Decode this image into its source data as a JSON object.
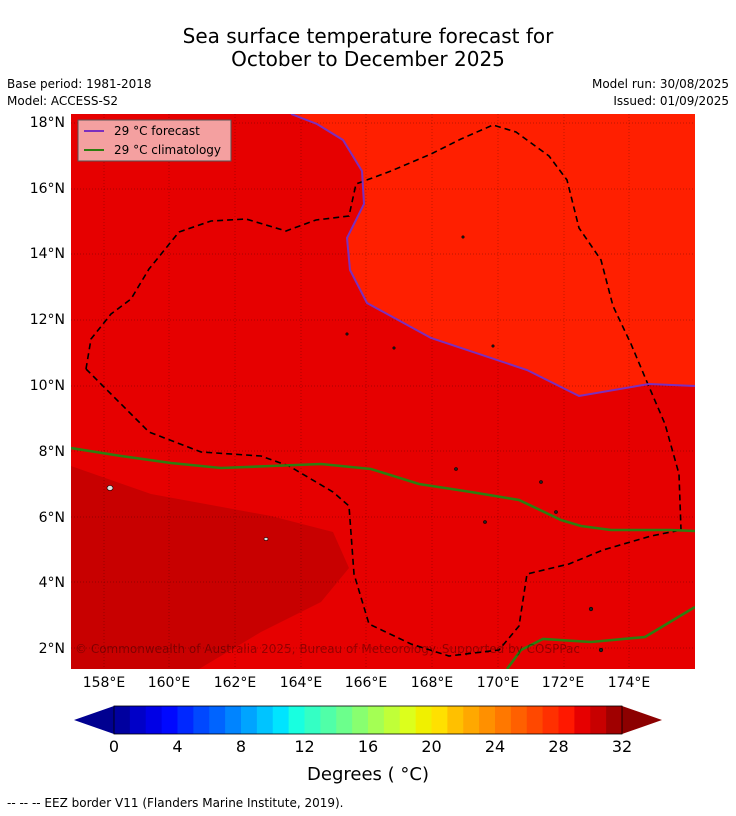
{
  "title": {
    "line1": "Sea surface temperature forecast for",
    "line2": "October to December 2025"
  },
  "meta": {
    "base_period": "Base period: 1981-2018",
    "model": "Model: ACCESS-S2",
    "model_run": "Model run: 30/08/2025",
    "issued": "Issued: 01/09/2025"
  },
  "legend": {
    "forecast_label": "29 °C  forecast",
    "climatology_label": "29 °C  climatology",
    "forecast_color": "#7b2fbe",
    "climatology_color": "#2e7d10"
  },
  "map": {
    "lon_range": [
      157.0,
      176.0
    ],
    "lat_range": [
      1.4,
      18.3
    ],
    "lon_ticks": [
      "158°E",
      "160°E",
      "162°E",
      "164°E",
      "166°E",
      "168°E",
      "170°E",
      "172°E",
      "174°E"
    ],
    "lat_ticks": [
      "2°N",
      "4°N",
      "6°N",
      "8°N",
      "10°N",
      "12°N",
      "14°N",
      "16°N",
      "18°N"
    ],
    "copyright": "© Commonwealth of Australia 2025, Bureau of Meteorology. Supported by COSPPac",
    "fill_colors": {
      "warm_bg": "#e60000",
      "hotter": "#ff1f00",
      "cooler": "#c80000"
    },
    "gridlines": true
  },
  "colorbar": {
    "ticks": [
      "0",
      "4",
      "8",
      "12",
      "16",
      "20",
      "24",
      "28",
      "32"
    ],
    "label": "Degrees ( °C)",
    "colors": [
      "#00009f",
      "#0000c8",
      "#0000e6",
      "#0008ff",
      "#0028ff",
      "#0048ff",
      "#0064ff",
      "#0084ff",
      "#00a4ff",
      "#00c4ff",
      "#00e4ff",
      "#18ffe0",
      "#34ffc4",
      "#50ffa8",
      "#6cff8c",
      "#88ff70",
      "#a4ff54",
      "#c0ff38",
      "#dcff1c",
      "#f0f000",
      "#ffe000",
      "#ffc000",
      "#ffa800",
      "#ff9000",
      "#ff7800",
      "#ff6000",
      "#ff4800",
      "#ff3000",
      "#ff1800",
      "#e60000",
      "#c80000",
      "#a00000"
    ],
    "under_color": "#000090",
    "over_color": "#8c0000"
  },
  "footnote": "--  --  -- EEZ border V11 (Flanders Marine Institute, 2019)."
}
